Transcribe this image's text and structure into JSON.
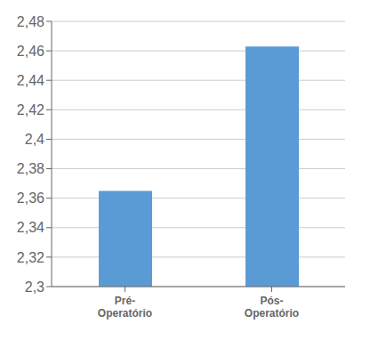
{
  "chart_data": {
    "type": "bar",
    "categories": [
      "Pré-\nOperatório",
      "Pós-\nOperatório"
    ],
    "values": [
      2.365,
      2.463
    ],
    "color": "#5B9BD5",
    "ylim": [
      2.3,
      2.48
    ],
    "yticks": [
      {
        "value": 2.3,
        "label": "2,3"
      },
      {
        "value": 2.32,
        "label": "2,32"
      },
      {
        "value": 2.34,
        "label": "2,34"
      },
      {
        "value": 2.36,
        "label": "2,36"
      },
      {
        "value": 2.38,
        "label": "2,38"
      },
      {
        "value": 2.4,
        "label": "2,4"
      },
      {
        "value": 2.42,
        "label": "2,42"
      },
      {
        "value": 2.44,
        "label": "2,44"
      },
      {
        "value": 2.46,
        "label": "2,46"
      },
      {
        "value": 2.48,
        "label": "2,48"
      }
    ],
    "grid": true
  }
}
